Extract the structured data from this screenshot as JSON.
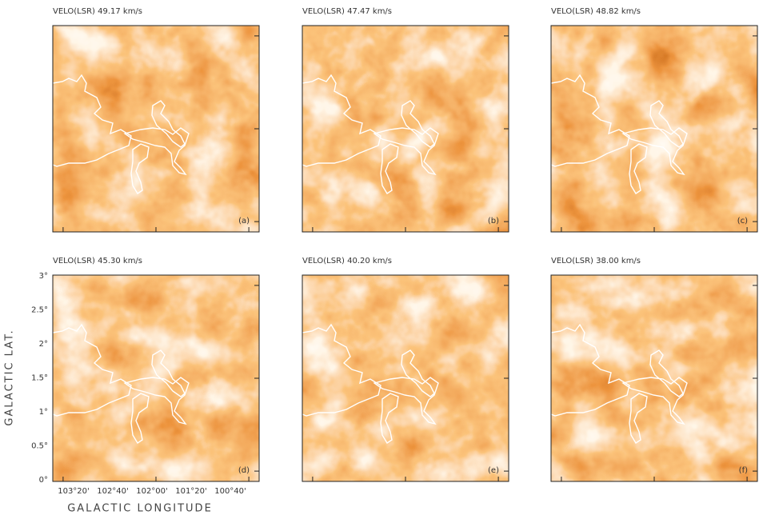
{
  "panels": [
    {
      "title": "VELO(LSR)   49.17 km/s",
      "label": "(a)"
    },
    {
      "title": "VELO(LSR)   47.47 km/s",
      "label": "(b)"
    },
    {
      "title": "VELO(LSR)   48.82 km/s",
      "label": "(c)"
    },
    {
      "title": "VELO(LSR)   45.30 km/s",
      "label": "(d)"
    },
    {
      "title": "VELO(LSR)   40.20 km/s",
      "label": "(e)"
    },
    {
      "title": "VELO(LSR)   38.00 km/s",
      "label": "(f)"
    }
  ],
  "x_axis": {
    "title": "GALACTIC LONGITUDE",
    "ticks": [
      "103°20'",
      "102°40'",
      "102°00'",
      "101°20'",
      "100°40'"
    ]
  },
  "y_axis": {
    "title": "GALACTIC LAT.",
    "ticks": [
      "3°",
      "2.5°",
      "2°",
      "1.5°",
      "1°",
      "0.5°",
      "0°"
    ]
  }
}
